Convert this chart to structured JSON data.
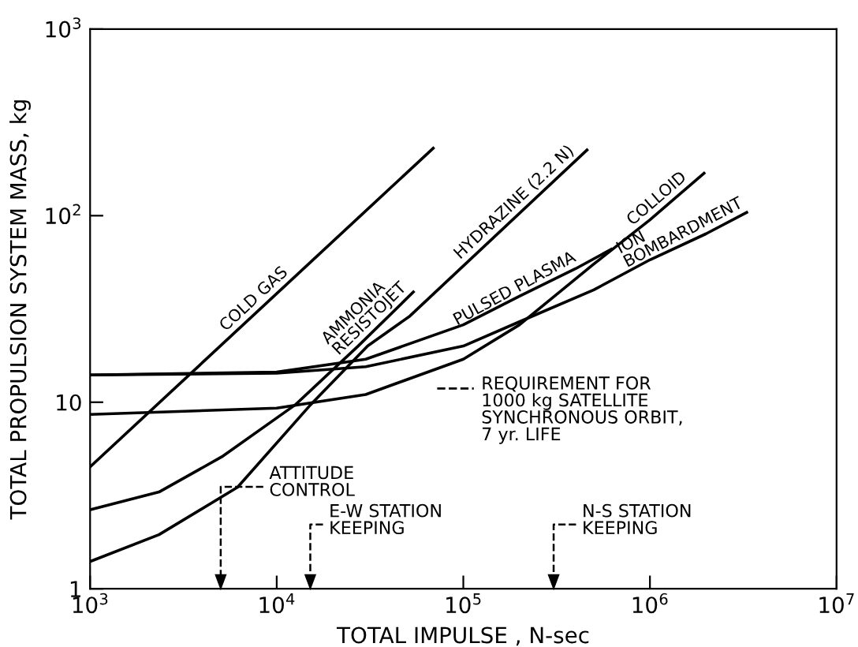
{
  "chart_data": {
    "type": "line",
    "xlabel": "TOTAL IMPULSE , N-sec",
    "ylabel": "TOTAL PROPULSION SYSTEM MASS, kg",
    "log": "xy",
    "grid": false,
    "legend": false,
    "marker": "none",
    "line_style": "solid",
    "xlim": [
      1000,
      10000000
    ],
    "ylim": [
      1,
      1000
    ],
    "xticks": [
      {
        "value": 1000,
        "label": "10$^{3}$"
      },
      {
        "value": 10000,
        "label": "10$^{4}$"
      },
      {
        "value": 100000,
        "label": "10$^{5}$"
      },
      {
        "value": 1000000,
        "label": "10$^{6}$"
      },
      {
        "value": 10000000,
        "label": "10$^{7}$"
      }
    ],
    "yticks": [
      1,
      10,
      {
        "value": 100,
        "label": "10$^{2}$"
      },
      {
        "value": 1000,
        "label": "10$^{3}$"
      }
    ],
    "series": [
      {
        "name": "COLD GAS",
        "color": "#000000",
        "x": [
          1000,
          69000
        ],
        "values": [
          4.5,
          230
        ]
      },
      {
        "name": "AMMONIA\nRESISTOJET",
        "color": "#000000",
        "x": [
          1000,
          2340,
          5080,
          12600,
          27300,
          54000
        ],
        "values": [
          2.65,
          3.3,
          5.1,
          9.7,
          20,
          39
        ]
      },
      {
        "name": "HYDRAZINE (2.2 N)",
        "color": "#000000",
        "x": [
          1000,
          2340,
          6170,
          15200,
          30700,
          51800,
          460000
        ],
        "values": [
          1.4,
          1.95,
          3.5,
          9.7,
          20,
          29,
          225
        ]
      },
      {
        "name": "PULSED PLASMA",
        "color": "#000000",
        "x": [
          1000,
          10000,
          30000,
          100000,
          200000,
          400000,
          620000
        ],
        "values": [
          14,
          14.5,
          17,
          26,
          37,
          52,
          66
        ]
      },
      {
        "name": "COLLOID",
        "color": "#000000",
        "x": [
          1000,
          10000,
          30000,
          100000,
          200000,
          500000,
          1000000,
          1950000
        ],
        "values": [
          8.6,
          9.3,
          11,
          17,
          26,
          55,
          95,
          169
        ]
      },
      {
        "name": "ION\nBOMBARDMENT",
        "color": "#000000",
        "x": [
          1000,
          10000,
          30000,
          100000,
          200000,
          500000,
          1000000,
          2000000,
          3300000
        ],
        "values": [
          14,
          14.3,
          15.5,
          20,
          27,
          40,
          58,
          80,
          104
        ]
      }
    ],
    "annotations": [
      "REQUIREMENT FOR\n1000 kg SATELLITE\nSYNCHRONOUS ORBIT,\n7 yr. LIFE",
      "ATTITUDE\nCONTROL",
      "E-W STATION\nKEEPING",
      "N-S STATION\nKEEPING"
    ]
  }
}
